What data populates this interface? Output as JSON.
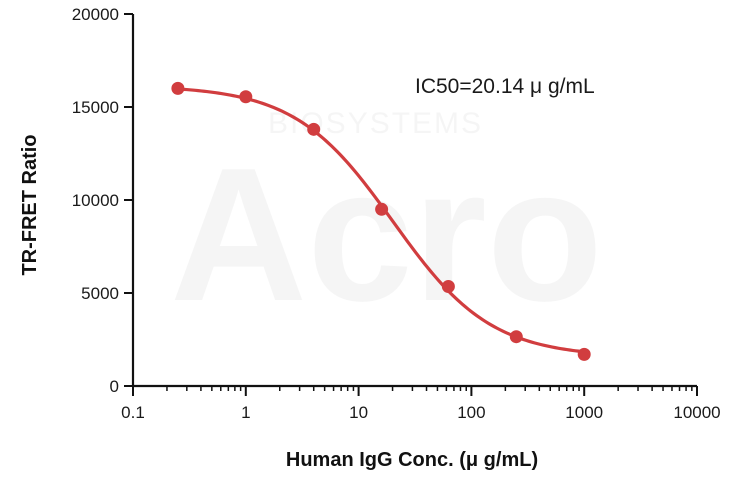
{
  "chart_data": {
    "type": "scatter",
    "title": "",
    "xlabel": "Human IgG Conc. (μ g/mL)",
    "ylabel": "TR-FRET Ratio",
    "x_scale": "log",
    "xlim": [
      0.1,
      10000
    ],
    "ylim": [
      0,
      20000
    ],
    "x_ticks": [
      "0.1",
      "1",
      "10",
      "100",
      "1000",
      "10000"
    ],
    "y_ticks": [
      "0",
      "5000",
      "10000",
      "15000",
      "20000"
    ],
    "grid": false,
    "series": [
      {
        "x": [
          0.25,
          1,
          4,
          16,
          62.5,
          250,
          1000
        ],
        "y": [
          16000,
          15550,
          13800,
          9500,
          5350,
          2650,
          1700
        ],
        "color": "#d13d3f"
      }
    ],
    "fit": {
      "top": 16150,
      "bottom": 1550,
      "ic50": 20.14,
      "hill": 1.0
    },
    "annotation": "IC50=20.14 μ g/mL",
    "watermark": "Acro BIOSYSTEMS"
  }
}
